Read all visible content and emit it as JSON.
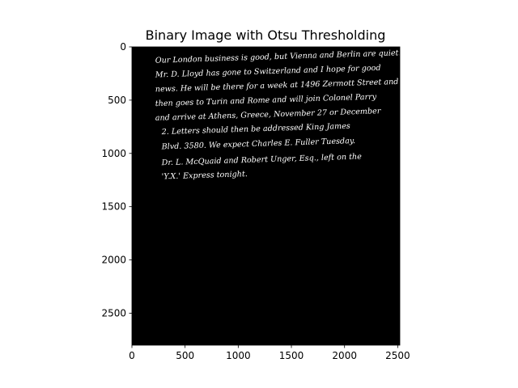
{
  "chart_data": {
    "type": "image",
    "title": "Binary Image with Otsu Thresholding",
    "xlabel": "",
    "ylabel": "",
    "xlim": [
      0,
      2520
    ],
    "ylim": [
      2800,
      0
    ],
    "xticks": [
      0,
      500,
      1000,
      1500,
      2000,
      2500
    ],
    "yticks": [
      0,
      500,
      1000,
      1500,
      2000,
      2500
    ],
    "grid": false,
    "colormap": "gray",
    "background_color": "#000000",
    "foreground_color": "#ffffff",
    "image_text_lines": [
      {
        "text": "Our London business is good, but Vienna and Berlin are quiet.",
        "x": 220,
        "y": 150
      },
      {
        "text": "Mr. D. Lloyd has gone to Switzerland and I hope for good",
        "x": 220,
        "y": 285
      },
      {
        "text": "news. He will be there for a week at 1496 Zermott Street and",
        "x": 220,
        "y": 420
      },
      {
        "text": "then goes to Turin and Rome and will join Colonel Parry",
        "x": 220,
        "y": 555
      },
      {
        "text": "and arrive at Athens, Greece, November 27 or December",
        "x": 220,
        "y": 690
      },
      {
        "text": "2. Letters should then be addressed King James",
        "x": 280,
        "y": 820
      },
      {
        "text": "Blvd. 3580. We expect Charles E. Fuller Tuesday.",
        "x": 280,
        "y": 960
      },
      {
        "text": "Dr. L. McQuaid and Robert Unger, Esq., left on the",
        "x": 280,
        "y": 1110
      },
      {
        "text": "'Y.X.' Express tonight.",
        "x": 280,
        "y": 1240
      }
    ]
  }
}
